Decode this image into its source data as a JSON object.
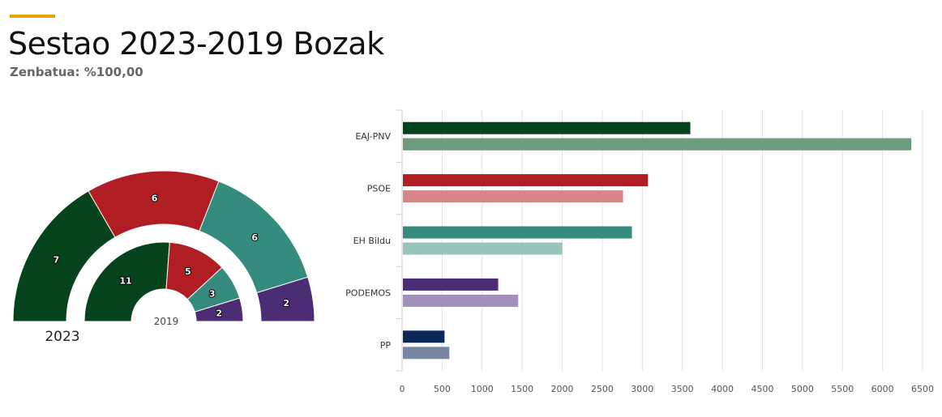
{
  "header": {
    "title": "Sestao 2023-2019 Bozak",
    "subtitle": "Zenbatua: %100,00",
    "accent_color": "#e5a50a"
  },
  "chart_data": [
    {
      "type": "pie",
      "variant": "parliament-semicircle",
      "rings": [
        {
          "name": "2023",
          "label": "2023",
          "slices": [
            {
              "party": "EAJ-PNV",
              "seats": 7,
              "color": "#04431c"
            },
            {
              "party": "PSOE",
              "seats": 6,
              "color": "#b01e23"
            },
            {
              "party": "EH Bildu",
              "seats": 6,
              "color": "#358b7e"
            },
            {
              "party": "PODEMOS",
              "seats": 2,
              "color": "#4c2c74"
            }
          ]
        },
        {
          "name": "2019",
          "label": "2019",
          "slices": [
            {
              "party": "EAJ-PNV",
              "seats": 11,
              "color": "#04431c"
            },
            {
              "party": "PSOE",
              "seats": 5,
              "color": "#b01e23"
            },
            {
              "party": "EH Bildu",
              "seats": 3,
              "color": "#358b7e"
            },
            {
              "party": "PODEMOS",
              "seats": 2,
              "color": "#4c2c74"
            }
          ]
        }
      ]
    },
    {
      "type": "bar",
      "orientation": "horizontal",
      "categories": [
        "EAJ-PNV",
        "PSOE",
        "EH Bildu",
        "PODEMOS",
        "PP"
      ],
      "series": [
        {
          "values": [
            3600,
            3070,
            2870,
            1200,
            530
          ],
          "colors": [
            "#04431c",
            "#b01e23",
            "#358b7e",
            "#4c2c74",
            "#0d2857"
          ]
        },
        {
          "values": [
            6360,
            2760,
            2000,
            1450,
            590
          ],
          "colors": [
            "#6e9b7c",
            "#d98587",
            "#97c5ba",
            "#a190b9",
            "#7787a2"
          ]
        }
      ],
      "xlim": [
        0,
        6500
      ],
      "xticks": [
        0,
        500,
        1000,
        1500,
        2000,
        2500,
        3000,
        3500,
        4000,
        4500,
        5000,
        5500,
        6000,
        6500
      ],
      "grid": true
    }
  ]
}
